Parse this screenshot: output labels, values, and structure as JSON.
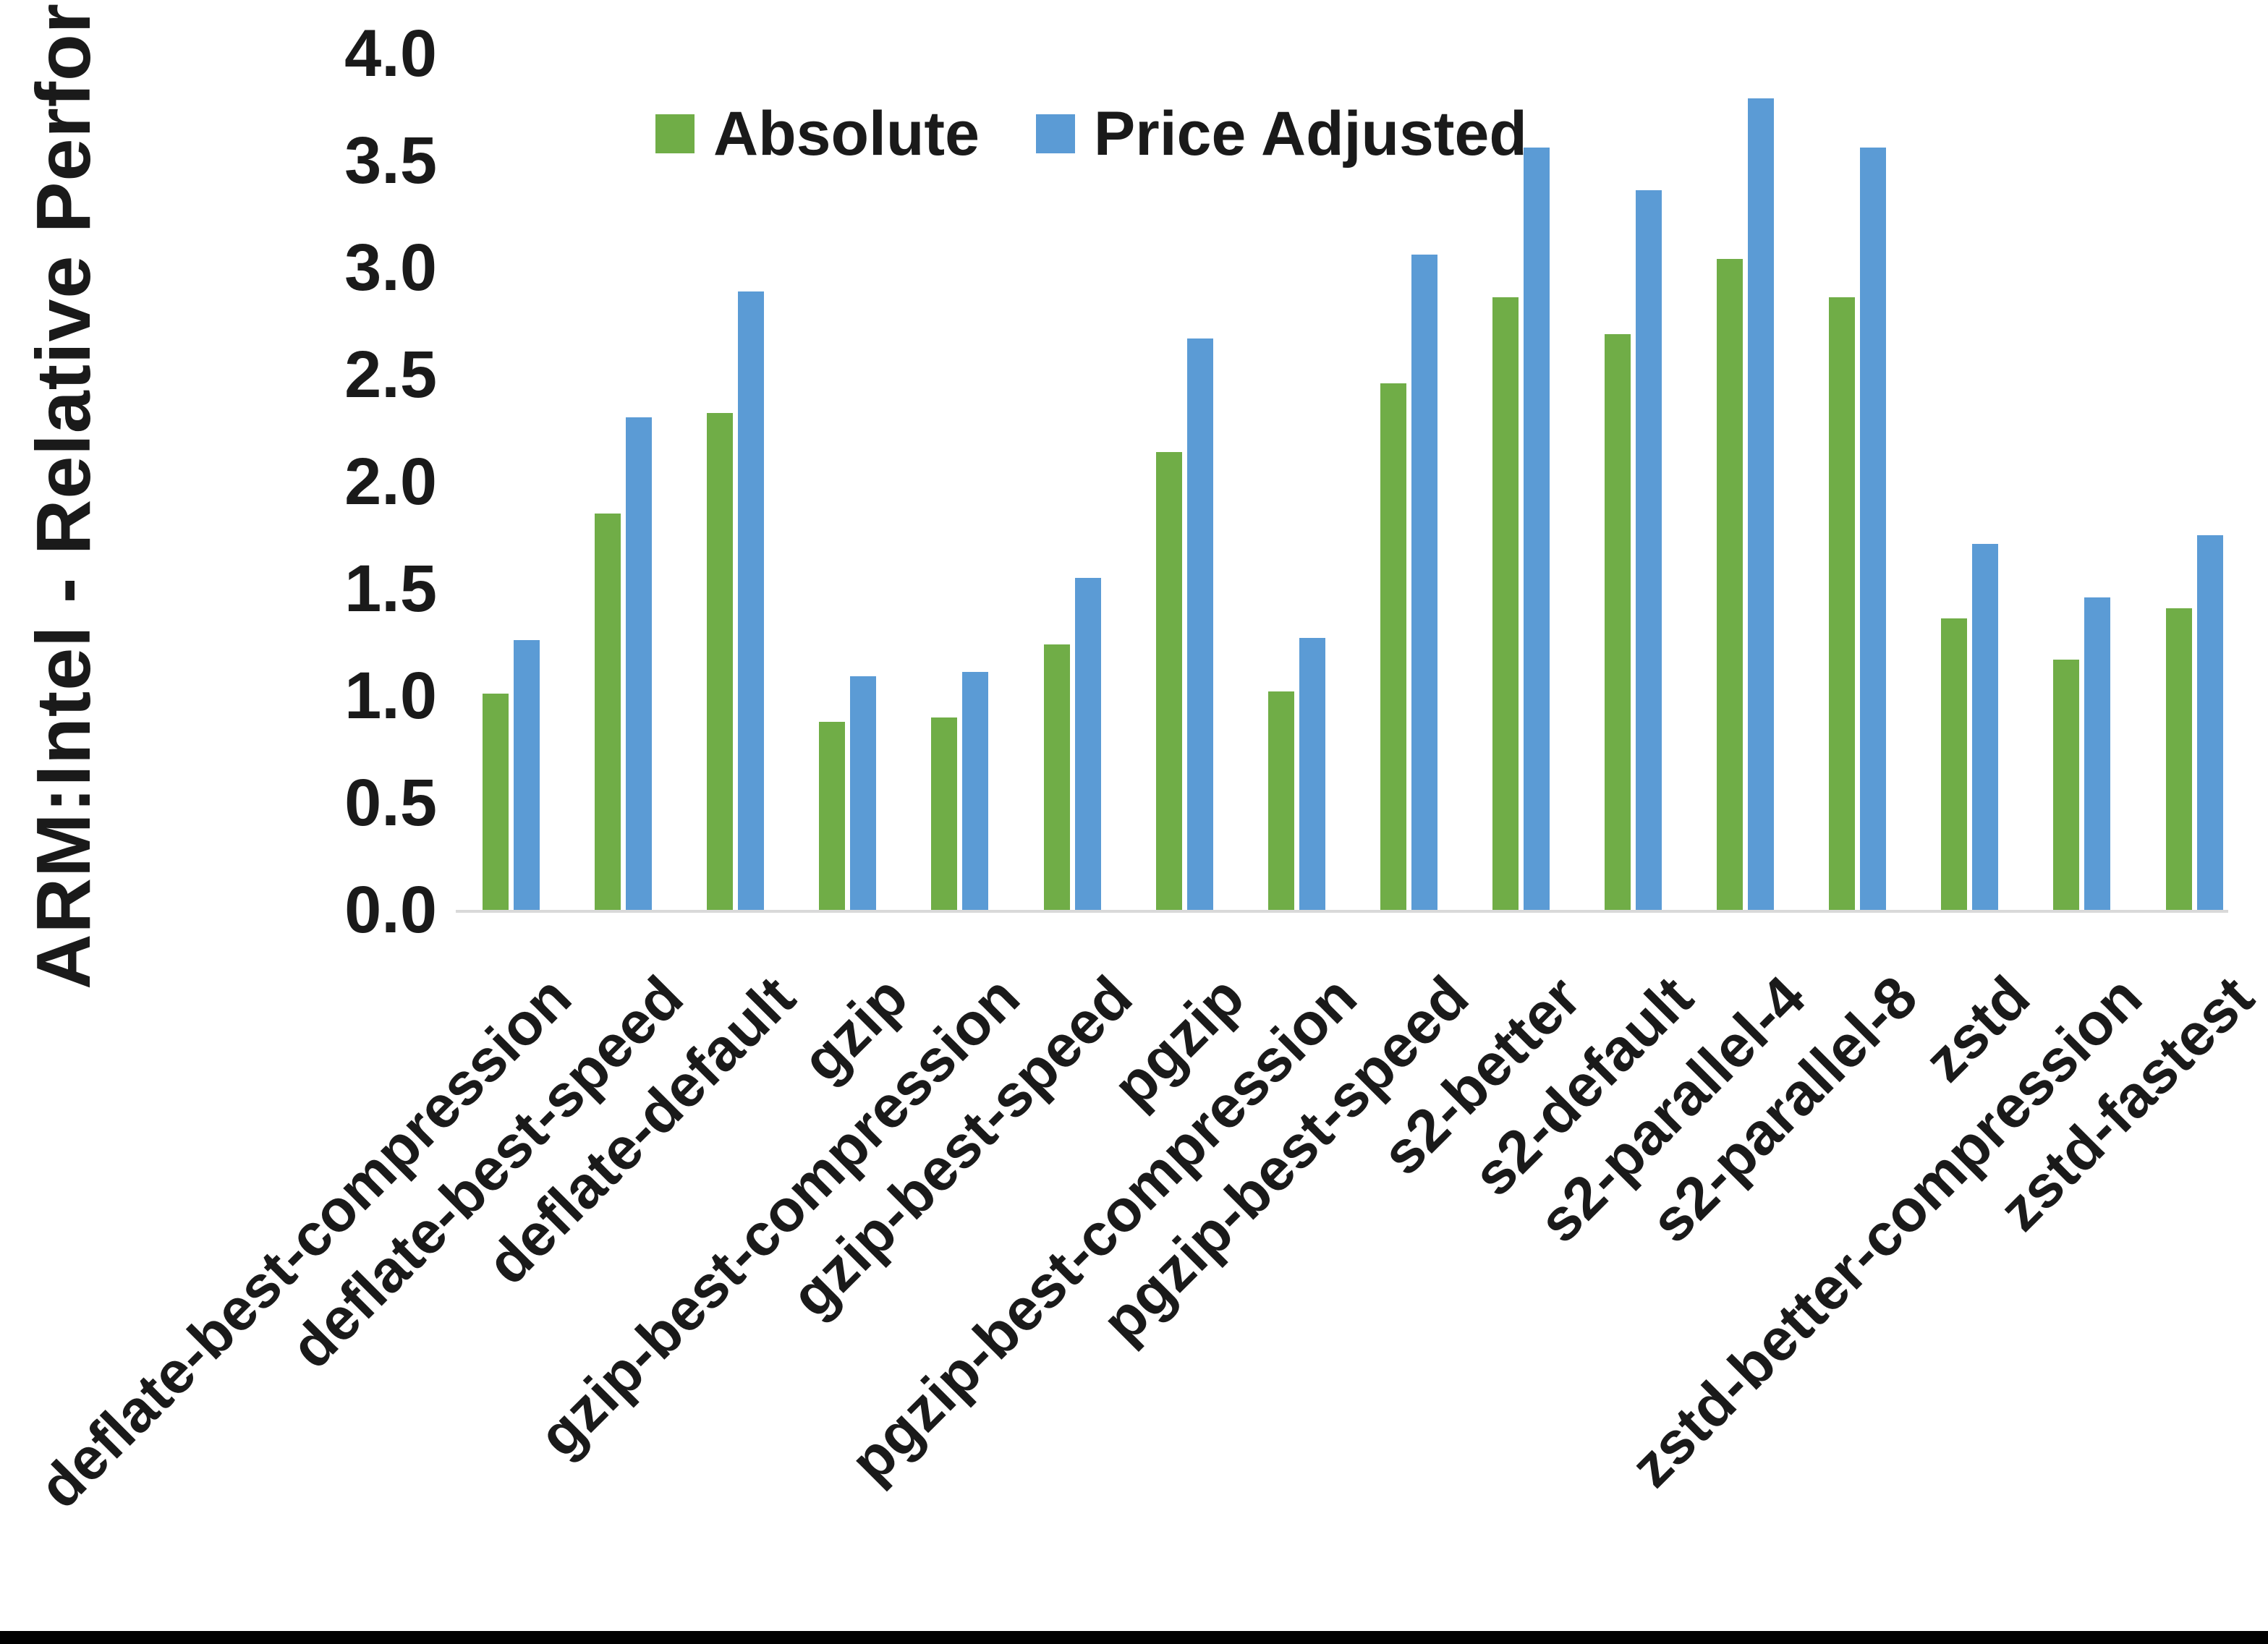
{
  "chart_data": {
    "type": "bar",
    "title": "",
    "xlabel": "",
    "ylabel": "ARM:Intel - Relative Performance",
    "ylim": [
      0.0,
      4.0
    ],
    "ytick_step": 0.5,
    "ytick_labels": [
      "0.0",
      "0.5",
      "1.0",
      "1.5",
      "2.0",
      "2.5",
      "3.0",
      "3.5",
      "4.0"
    ],
    "grid": false,
    "legend_position": "top-center",
    "categories": [
      "deflate-best-compression",
      "deflate-best-speed",
      "deflate-default",
      "gzip",
      "gzip-best-compression",
      "gzip-best-speed",
      "pgzip",
      "pgzip-best-compression",
      "pgzip-best-speed",
      "s2-better",
      "s2-default",
      "s2-parallel-4",
      "s2-parallel-8",
      "zstd",
      "zstd-better-compression",
      "zstd-fastest"
    ],
    "series": [
      {
        "name": "Absolute",
        "color": "#70AD47",
        "values": [
          1.01,
          1.85,
          2.32,
          0.88,
          0.9,
          1.24,
          2.14,
          1.02,
          2.46,
          2.86,
          2.69,
          3.04,
          2.86,
          1.36,
          1.17,
          1.41
        ]
      },
      {
        "name": "Price Adjusted",
        "color": "#5B9BD5",
        "values": [
          1.26,
          2.3,
          2.89,
          1.09,
          1.11,
          1.55,
          2.67,
          1.27,
          3.06,
          3.56,
          3.36,
          3.79,
          3.56,
          1.71,
          1.46,
          1.75
        ]
      }
    ]
  },
  "colors": {
    "background": "#FFFFFF",
    "axis_line": "#D9D9D9",
    "text": "#1A1A1A",
    "bottom_edge": "#000000"
  }
}
